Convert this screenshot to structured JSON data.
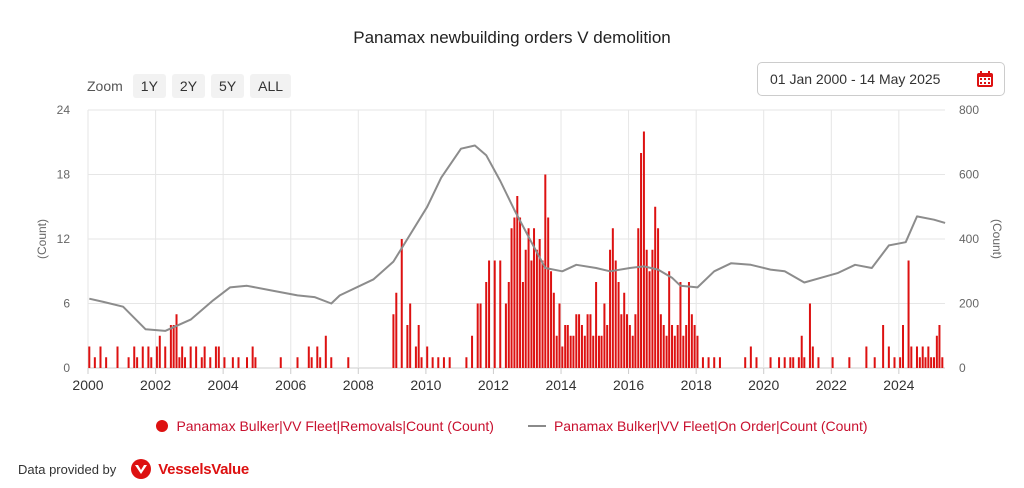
{
  "chart_title": "Panamax newbuilding orders V demolition",
  "zoom": {
    "label": "Zoom",
    "buttons": [
      "1Y",
      "2Y",
      "5Y",
      "ALL"
    ]
  },
  "date_range": "01 Jan 2000 - 14 May 2025",
  "legend": {
    "removals": "Panamax Bulker|VV Fleet|Removals|Count (Count)",
    "on_order": "Panamax Bulker|VV Fleet|On Order|Count (Count)"
  },
  "footer": {
    "provided_by": "Data provided by",
    "brand": "VesselsValue"
  },
  "colors": {
    "bars": "#dd1111",
    "line": "#8c8c8c",
    "grid": "#e6e6e6",
    "legend_text": "#c8102e"
  },
  "chart_data": {
    "type": "bar+line",
    "title": "Panamax newbuilding orders V demolition",
    "x_range": [
      "2000-01-01",
      "2025-05-14"
    ],
    "x_ticks": [
      "2000",
      "2002",
      "2004",
      "2006",
      "2008",
      "2010",
      "2012",
      "2014",
      "2016",
      "2018",
      "2020",
      "2022",
      "2024"
    ],
    "left_axis": {
      "label": "(Count)",
      "min": 0,
      "max": 24,
      "ticks": [
        0,
        6,
        12,
        18,
        24
      ]
    },
    "right_axis": {
      "label": "(Count)",
      "min": 0,
      "max": 800,
      "ticks": [
        0,
        200,
        400,
        600,
        800
      ]
    },
    "series": [
      {
        "name": "Panamax Bulker|VV Fleet|Removals|Count (Count)",
        "axis": "left",
        "kind": "bar",
        "points": [
          [
            "2000-01",
            2
          ],
          [
            "2000-03",
            1
          ],
          [
            "2000-05",
            2
          ],
          [
            "2000-07",
            1
          ],
          [
            "2000-11",
            2
          ],
          [
            "2001-03",
            1
          ],
          [
            "2001-05",
            2
          ],
          [
            "2001-06",
            1
          ],
          [
            "2001-08",
            2
          ],
          [
            "2001-10",
            2
          ],
          [
            "2001-11",
            1
          ],
          [
            "2002-01",
            2
          ],
          [
            "2002-02",
            3
          ],
          [
            "2002-04",
            2
          ],
          [
            "2002-06",
            4
          ],
          [
            "2002-07",
            4
          ],
          [
            "2002-08",
            5
          ],
          [
            "2002-09",
            1
          ],
          [
            "2002-10",
            2
          ],
          [
            "2002-11",
            1
          ],
          [
            "2003-01",
            2
          ],
          [
            "2003-03",
            2
          ],
          [
            "2003-05",
            1
          ],
          [
            "2003-06",
            2
          ],
          [
            "2003-08",
            1
          ],
          [
            "2003-10",
            2
          ],
          [
            "2003-11",
            2
          ],
          [
            "2004-01",
            1
          ],
          [
            "2004-04",
            1
          ],
          [
            "2004-06",
            1
          ],
          [
            "2004-09",
            1
          ],
          [
            "2004-11",
            2
          ],
          [
            "2004-12",
            1
          ],
          [
            "2005-09",
            1
          ],
          [
            "2006-03",
            1
          ],
          [
            "2006-07",
            2
          ],
          [
            "2006-08",
            1
          ],
          [
            "2006-10",
            2
          ],
          [
            "2006-11",
            1
          ],
          [
            "2007-01",
            3
          ],
          [
            "2007-03",
            1
          ],
          [
            "2007-09",
            1
          ],
          [
            "2009-01",
            5
          ],
          [
            "2009-02",
            7
          ],
          [
            "2009-04",
            12
          ],
          [
            "2009-06",
            4
          ],
          [
            "2009-07",
            6
          ],
          [
            "2009-09",
            2
          ],
          [
            "2009-10",
            4
          ],
          [
            "2009-11",
            1
          ],
          [
            "2010-01",
            2
          ],
          [
            "2010-03",
            1
          ],
          [
            "2010-05",
            1
          ],
          [
            "2010-07",
            1
          ],
          [
            "2010-09",
            1
          ],
          [
            "2011-03",
            1
          ],
          [
            "2011-05",
            3
          ],
          [
            "2011-07",
            6
          ],
          [
            "2011-08",
            6
          ],
          [
            "2011-10",
            8
          ],
          [
            "2011-11",
            10
          ],
          [
            "2012-01",
            10
          ],
          [
            "2012-03",
            10
          ],
          [
            "2012-05",
            6
          ],
          [
            "2012-06",
            8
          ],
          [
            "2012-07",
            13
          ],
          [
            "2012-08",
            14
          ],
          [
            "2012-09",
            16
          ],
          [
            "2012-10",
            14
          ],
          [
            "2012-11",
            8
          ],
          [
            "2012-12",
            11
          ],
          [
            "2013-01",
            13
          ],
          [
            "2013-02",
            10
          ],
          [
            "2013-03",
            13
          ],
          [
            "2013-04",
            11
          ],
          [
            "2013-05",
            12
          ],
          [
            "2013-06",
            10
          ],
          [
            "2013-07",
            18
          ],
          [
            "2013-08",
            14
          ],
          [
            "2013-09",
            9
          ],
          [
            "2013-10",
            7
          ],
          [
            "2013-11",
            3
          ],
          [
            "2013-12",
            6
          ],
          [
            "2014-01",
            2
          ],
          [
            "2014-02",
            4
          ],
          [
            "2014-03",
            4
          ],
          [
            "2014-04",
            3
          ],
          [
            "2014-05",
            3
          ],
          [
            "2014-06",
            5
          ],
          [
            "2014-07",
            5
          ],
          [
            "2014-08",
            4
          ],
          [
            "2014-09",
            3
          ],
          [
            "2014-10",
            5
          ],
          [
            "2014-11",
            5
          ],
          [
            "2014-12",
            3
          ],
          [
            "2015-01",
            8
          ],
          [
            "2015-02",
            3
          ],
          [
            "2015-03",
            3
          ],
          [
            "2015-04",
            6
          ],
          [
            "2015-05",
            4
          ],
          [
            "2015-06",
            11
          ],
          [
            "2015-07",
            13
          ],
          [
            "2015-08",
            10
          ],
          [
            "2015-09",
            8
          ],
          [
            "2015-10",
            5
          ],
          [
            "2015-11",
            7
          ],
          [
            "2015-12",
            5
          ],
          [
            "2016-01",
            4
          ],
          [
            "2016-02",
            3
          ],
          [
            "2016-03",
            5
          ],
          [
            "2016-04",
            13
          ],
          [
            "2016-05",
            20
          ],
          [
            "2016-06",
            22
          ],
          [
            "2016-07",
            11
          ],
          [
            "2016-08",
            9
          ],
          [
            "2016-09",
            11
          ],
          [
            "2016-10",
            15
          ],
          [
            "2016-11",
            13
          ],
          [
            "2016-12",
            5
          ],
          [
            "2017-01",
            4
          ],
          [
            "2017-02",
            3
          ],
          [
            "2017-03",
            9
          ],
          [
            "2017-04",
            4
          ],
          [
            "2017-05",
            3
          ],
          [
            "2017-06",
            4
          ],
          [
            "2017-07",
            8
          ],
          [
            "2017-08",
            3
          ],
          [
            "2017-09",
            4
          ],
          [
            "2017-10",
            8
          ],
          [
            "2017-11",
            5
          ],
          [
            "2017-12",
            4
          ],
          [
            "2018-01",
            3
          ],
          [
            "2018-03",
            1
          ],
          [
            "2018-05",
            1
          ],
          [
            "2018-07",
            1
          ],
          [
            "2018-09",
            1
          ],
          [
            "2019-06",
            1
          ],
          [
            "2019-08",
            2
          ],
          [
            "2019-10",
            1
          ],
          [
            "2020-03",
            1
          ],
          [
            "2020-06",
            1
          ],
          [
            "2020-08",
            1
          ],
          [
            "2020-10",
            1
          ],
          [
            "2020-11",
            1
          ],
          [
            "2021-01",
            1
          ],
          [
            "2021-02",
            3
          ],
          [
            "2021-03",
            1
          ],
          [
            "2021-05",
            6
          ],
          [
            "2021-06",
            2
          ],
          [
            "2021-08",
            1
          ],
          [
            "2022-01",
            1
          ],
          [
            "2022-07",
            1
          ],
          [
            "2023-01",
            2
          ],
          [
            "2023-04",
            1
          ],
          [
            "2023-07",
            4
          ],
          [
            "2023-09",
            2
          ],
          [
            "2023-11",
            1
          ],
          [
            "2024-01",
            1
          ],
          [
            "2024-02",
            4
          ],
          [
            "2024-04",
            10
          ],
          [
            "2024-05",
            2
          ],
          [
            "2024-07",
            2
          ],
          [
            "2024-08",
            1
          ],
          [
            "2024-09",
            2
          ],
          [
            "2024-10",
            1
          ],
          [
            "2024-11",
            2
          ],
          [
            "2024-12",
            1
          ],
          [
            "2025-01",
            1
          ],
          [
            "2025-02",
            3
          ],
          [
            "2025-03",
            4
          ],
          [
            "2025-04",
            1
          ]
        ]
      },
      {
        "name": "Panamax Bulker|VV Fleet|On Order|Count (Count)",
        "axis": "right",
        "kind": "line",
        "points": [
          [
            "2000-01",
            215
          ],
          [
            "2000-06",
            205
          ],
          [
            "2001-01",
            190
          ],
          [
            "2001-09",
            120
          ],
          [
            "2002-04",
            115
          ],
          [
            "2003-01",
            150
          ],
          [
            "2003-09",
            210
          ],
          [
            "2004-03",
            250
          ],
          [
            "2004-09",
            255
          ],
          [
            "2005-06",
            240
          ],
          [
            "2006-03",
            225
          ],
          [
            "2006-09",
            220
          ],
          [
            "2007-03",
            200
          ],
          [
            "2007-06",
            225
          ],
          [
            "2008-06",
            275
          ],
          [
            "2009-01",
            330
          ],
          [
            "2009-06",
            400
          ],
          [
            "2010-01",
            500
          ],
          [
            "2010-06",
            590
          ],
          [
            "2011-01",
            680
          ],
          [
            "2011-06",
            690
          ],
          [
            "2011-10",
            660
          ],
          [
            "2012-03",
            580
          ],
          [
            "2012-08",
            490
          ],
          [
            "2013-02",
            390
          ],
          [
            "2013-07",
            310
          ],
          [
            "2014-01",
            300
          ],
          [
            "2014-06",
            320
          ],
          [
            "2015-01",
            310
          ],
          [
            "2015-06",
            300
          ],
          [
            "2016-01",
            310
          ],
          [
            "2016-06",
            315
          ],
          [
            "2016-11",
            305
          ],
          [
            "2017-04",
            280
          ],
          [
            "2017-07",
            255
          ],
          [
            "2018-01",
            250
          ],
          [
            "2018-07",
            300
          ],
          [
            "2019-01",
            325
          ],
          [
            "2019-08",
            320
          ],
          [
            "2020-03",
            305
          ],
          [
            "2020-08",
            300
          ],
          [
            "2021-03",
            265
          ],
          [
            "2021-09",
            280
          ],
          [
            "2022-03",
            295
          ],
          [
            "2022-09",
            320
          ],
          [
            "2023-03",
            310
          ],
          [
            "2023-09",
            380
          ],
          [
            "2024-03",
            390
          ],
          [
            "2024-07",
            470
          ],
          [
            "2025-01",
            460
          ],
          [
            "2025-05",
            450
          ]
        ]
      }
    ],
    "grid": true,
    "legend_position": "bottom-center"
  }
}
